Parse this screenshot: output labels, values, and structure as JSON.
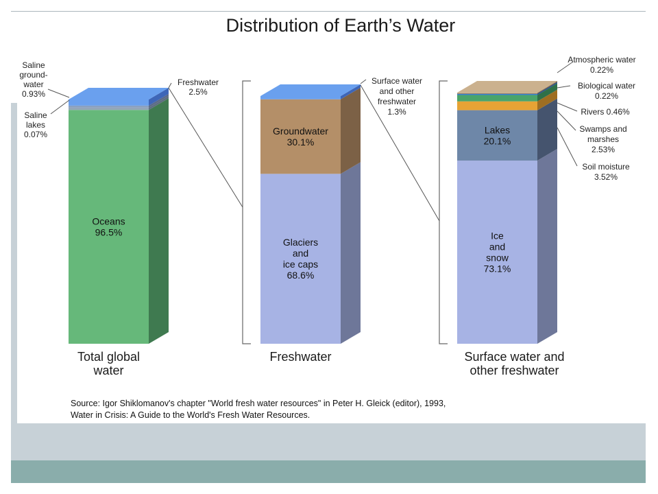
{
  "chart_data": {
    "type": "bar",
    "title": "Distribution of Earth’s Water",
    "stacked": true,
    "bars": [
      {
        "label_lines": [
          "Total global",
          "water"
        ],
        "segments": [
          {
            "name": "Oceans",
            "value": 96.5,
            "label_lines": [
              "Oceans",
              "96.5%"
            ],
            "color": "#66b87a",
            "side": "#3f7a50"
          },
          {
            "name": "Saline groundwater",
            "value": 0.93,
            "color": "#93a6b8",
            "side": "#5e6e80"
          },
          {
            "name": "Saline lakes",
            "value": 0.07,
            "color": "#8aa0c0",
            "side": "#5a6a88"
          },
          {
            "name": "Freshwater",
            "value": 2.5,
            "color": "#6aa0ee",
            "side": "#3e66b8"
          }
        ],
        "callouts": [
          {
            "lines": [
              "Saline",
              "ground-",
              "water",
              "0.93%"
            ]
          },
          {
            "lines": [
              "Saline",
              "lakes",
              "0.07%"
            ]
          },
          {
            "lines": [
              "Freshwater",
              "2.5%"
            ]
          }
        ]
      },
      {
        "label_lines": [
          "Freshwater"
        ],
        "segments": [
          {
            "name": "Glaciers and ice caps",
            "value": 68.6,
            "label_lines": [
              "Glaciers",
              "and",
              "ice caps",
              "68.6%"
            ],
            "color": "#a7b3e4",
            "side": "#6e7799"
          },
          {
            "name": "Groundwater",
            "value": 30.1,
            "label_lines": [
              "Groundwater",
              "30.1%"
            ],
            "color": "#b48f68",
            "side": "#7c6146"
          },
          {
            "name": "Surface water and other freshwater",
            "value": 1.3,
            "color": "#6aa0ee",
            "side": "#3e66b8"
          }
        ],
        "callouts": [
          {
            "lines": [
              "Surface water",
              "and other",
              "freshwater",
              "1.3%"
            ]
          }
        ]
      },
      {
        "label_lines": [
          "Surface water and",
          "other freshwater"
        ],
        "segments": [
          {
            "name": "Ice and snow",
            "value": 73.1,
            "label_lines": [
              "Ice",
              "and",
              "snow",
              "73.1%"
            ],
            "color": "#a7b3e4",
            "side": "#6e7799"
          },
          {
            "name": "Lakes",
            "value": 20.1,
            "label_lines": [
              "Lakes",
              "20.1%"
            ],
            "color": "#6e87a8",
            "side": "#45546e"
          },
          {
            "name": "Soil moisture",
            "value": 3.52,
            "color": "#e6a335",
            "side": "#9e6e22"
          },
          {
            "name": "Swamps and marshes",
            "value": 2.53,
            "color": "#4aa46a",
            "side": "#2f7048"
          },
          {
            "name": "Rivers",
            "value": 0.46,
            "color": "#3a7fd0",
            "side": "#245090"
          },
          {
            "name": "Biological water",
            "value": 0.22,
            "color": "#8a6d4c",
            "side": "#5e4a34"
          },
          {
            "name": "Atmospheric water",
            "value": 0.22,
            "color": "#cbb18e",
            "side": "#8e7a60"
          }
        ],
        "callouts": [
          {
            "lines": [
              "Atmospheric water",
              "0.22%"
            ]
          },
          {
            "lines": [
              "Biological water",
              "0.22%"
            ]
          },
          {
            "lines": [
              "Rivers  0.46%"
            ]
          },
          {
            "lines": [
              "Swamps and",
              "marshes",
              "2.53%"
            ]
          },
          {
            "lines": [
              "Soil moisture",
              "3.52%"
            ]
          }
        ]
      }
    ],
    "source_lines": [
      "Source: Igor Shiklomanov's chapter \"World fresh water resources\" in Peter H. Gleick (editor), 1993,",
      "Water in Crisis: A Guide to the World's Fresh Water Resources."
    ]
  }
}
